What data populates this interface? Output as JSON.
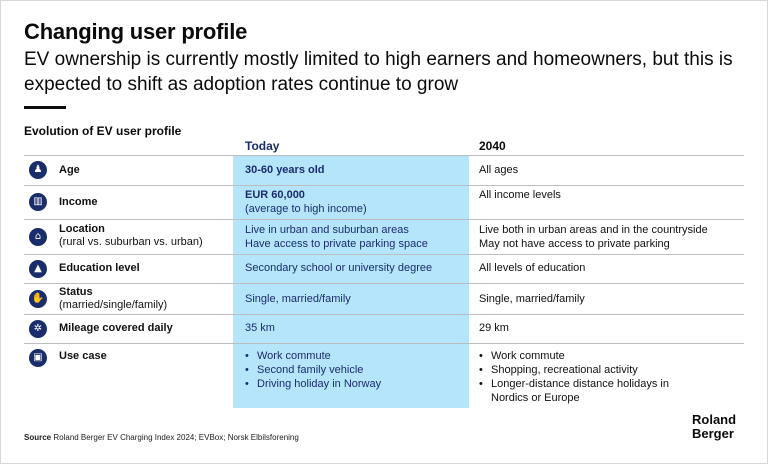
{
  "title": "Changing user profile",
  "subtitle": "EV ownership is currently mostly limited to high earners and homeowners, but this is expected to shift as adoption rates continue to grow",
  "section_title": "Evolution of EV user profile",
  "columns": {
    "today": "Today",
    "future": "2040"
  },
  "accent_color": "#1a2d6b",
  "highlight_color": "#b5e5fb",
  "rows": [
    {
      "icon": "age-icon",
      "label": "Age",
      "sublabel": "",
      "today": [
        "30-60 years old"
      ],
      "future": [
        "All ages"
      ]
    },
    {
      "icon": "income-icon",
      "label": "Income",
      "sublabel": "",
      "today": [
        "EUR 60,000",
        "(average to high income)"
      ],
      "future": [
        "All income levels"
      ]
    },
    {
      "icon": "location-icon",
      "label": "Location",
      "sublabel": "(rural vs. suburban vs. urban)",
      "today": [
        "Live in urban and suburban areas",
        "Have access to private parking space"
      ],
      "future": [
        "Live both in urban areas and in the countryside",
        "May not have access to private parking"
      ]
    },
    {
      "icon": "education-icon",
      "label": "Education level",
      "sublabel": "",
      "today": [
        "Secondary school or university degree"
      ],
      "future": [
        "All levels of education"
      ]
    },
    {
      "icon": "status-icon",
      "label": "Status",
      "sublabel": "(married/single/family)",
      "today": [
        "Single, married/family"
      ],
      "future": [
        "Single, married/family"
      ]
    },
    {
      "icon": "mileage-icon",
      "label": "Mileage covered daily",
      "sublabel": "",
      "today": [
        "35 km"
      ],
      "future": [
        "29 km"
      ]
    },
    {
      "icon": "use-case-icon",
      "label": "Use case",
      "sublabel": "",
      "today": [
        "Work commute",
        "Second family vehicle",
        "Driving holiday in Norway"
      ],
      "future": [
        "Work commute",
        "Shopping, recreational activity",
        "Longer-distance distance holidays in Nordics or Europe"
      ]
    }
  ],
  "source": {
    "label": "Source",
    "text": "Roland Berger EV Charging Index 2024; EVBox; Norsk Elbilsforening"
  },
  "logo": {
    "line1": "Roland",
    "line2": "Berger"
  }
}
